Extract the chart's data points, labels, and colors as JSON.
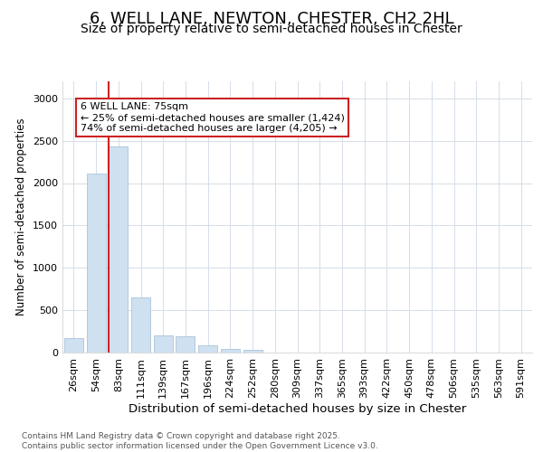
{
  "title_line1": "6, WELL LANE, NEWTON, CHESTER, CH2 2HL",
  "title_line2": "Size of property relative to semi-detached houses in Chester",
  "xlabel": "Distribution of semi-detached houses by size in Chester",
  "ylabel": "Number of semi-detached properties",
  "categories": [
    "26sqm",
    "54sqm",
    "83sqm",
    "111sqm",
    "139sqm",
    "167sqm",
    "196sqm",
    "224sqm",
    "252sqm",
    "280sqm",
    "309sqm",
    "337sqm",
    "365sqm",
    "393sqm",
    "422sqm",
    "450sqm",
    "478sqm",
    "506sqm",
    "535sqm",
    "563sqm",
    "591sqm"
  ],
  "values": [
    175,
    2110,
    2430,
    650,
    200,
    195,
    85,
    40,
    30,
    0,
    0,
    0,
    0,
    0,
    0,
    0,
    0,
    0,
    0,
    0,
    0
  ],
  "bar_color": "#cfe0f0",
  "bar_edge_color": "#aac4dc",
  "vline_color": "#cc2222",
  "vline_x_index": 2,
  "annotation_text": "6 WELL LANE: 75sqm\n← 25% of semi-detached houses are smaller (1,424)\n74% of semi-detached houses are larger (4,205) →",
  "annotation_box_edgecolor": "#cc2222",
  "ylim": [
    0,
    3200
  ],
  "yticks": [
    0,
    500,
    1000,
    1500,
    2000,
    2500,
    3000
  ],
  "background_color": "#ffffff",
  "plot_background": "#ffffff",
  "grid_color": "#d5dde8",
  "footer_text": "Contains HM Land Registry data © Crown copyright and database right 2025.\nContains public sector information licensed under the Open Government Licence v3.0.",
  "title_fontsize": 13,
  "subtitle_fontsize": 10,
  "xlabel_fontsize": 9.5,
  "ylabel_fontsize": 8.5,
  "tick_fontsize": 8,
  "footer_fontsize": 6.5
}
